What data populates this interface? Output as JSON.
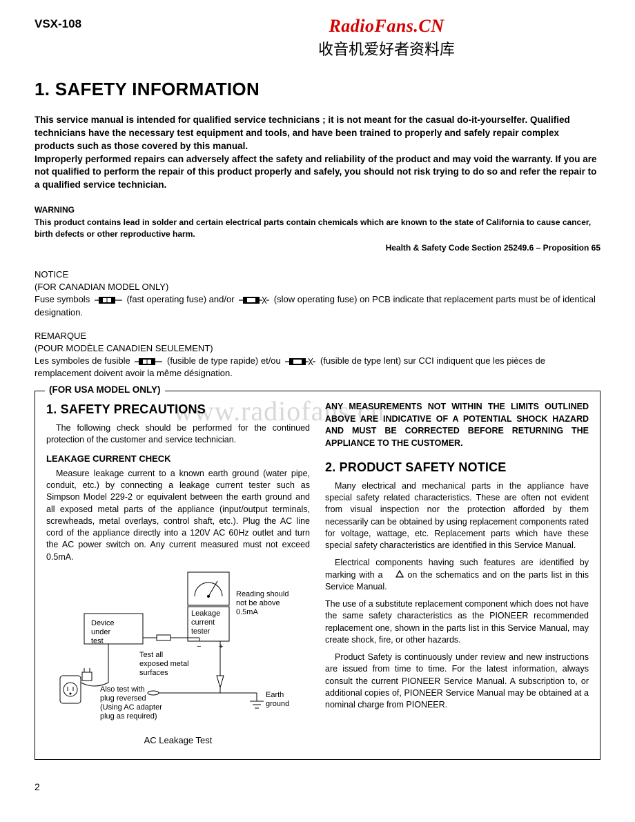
{
  "header": {
    "model": "VSX-108",
    "watermark_en": "RadioFans.CN",
    "watermark_cn": "收音机爱好者资料库"
  },
  "section_title": "1. SAFETY INFORMATION",
  "intro": "This service manual is intended for qualified service technicians ; it is not meant for the casual do-it-yourselfer. Qualified technicians have the necessary test equipment and tools, and have been trained to properly and safely repair complex products such as those covered by this manual.\nImproperly performed repairs can adversely affect the safety and reliability of the product and may void the warranty. If you are not qualified to perform the repair of this product properly and safely, you should not risk trying to do so and refer the repair to a qualified service technician.",
  "warning": {
    "head": "WARNING",
    "body": "This product contains lead in solder and certain electrical parts contain chemicals which are known to the state of California to cause cancer, birth defects or other reproductive harm.",
    "prop65": "Health & Safety Code Section 25249.6 – Proposition 65"
  },
  "notice_en": {
    "line1": "NOTICE",
    "line2": "(FOR CANADIAN MODEL ONLY)",
    "pre": "Fuse symbols",
    "mid": "(fast operating fuse) and/or",
    "post": "(slow operating fuse) on PCB indicate that replacement parts must be of identical designation."
  },
  "notice_fr": {
    "line1": "REMARQUE",
    "line2": "(POUR MODÈLE CANADIEN SEULEMENT)",
    "pre": "Les symboles de fusible",
    "mid": "(fusible de type rapide) et/ou",
    "post": "(fusible de type lent) sur CCI indiquent que les pièces de remplacement doivent avoir la même désignation."
  },
  "box": {
    "legend": "(FOR USA MODEL ONLY)",
    "left": {
      "h": "1. SAFETY PRECAUTIONS",
      "p1": "The following check should be performed for the continued protection of the customer and service technician.",
      "sub": "LEAKAGE CURRENT CHECK",
      "p2": "Measure leakage current to a known earth ground (water pipe, conduit, etc.) by connecting a leakage current tester such as Simpson Model 229-2 or equivalent between the earth ground and all exposed metal parts of the appliance (input/output terminals, screwheads, metal overlays, control shaft, etc.). Plug the AC line cord of the appliance directly into a 120V AC 60Hz outlet and turn the AC power switch on. Any current measured must not exceed 0.5mA."
    },
    "right": {
      "caps": "ANY MEASUREMENTS NOT WITHIN THE LIMITS OUTLINED ABOVE ARE INDICATIVE OF A POTENTIAL SHOCK HAZARD AND MUST BE CORRECTED BEFORE RETURNING THE APPLIANCE TO THE CUSTOMER.",
      "h": "2. PRODUCT SAFETY NOTICE",
      "p1": "Many electrical and mechanical parts in the appliance have special safety related characteristics. These are often not evident from visual inspection nor the protection afforded by them necessarily can be obtained by using replacement components rated for voltage, wattage, etc. Replacement parts which have these special safety characteristics are identified in this Service Manual.",
      "p2_pre": "Electrical components having such features are identified by marking with a ",
      "p2_post": " on the schematics and on the parts list in this Service Manual.",
      "p3": "The use of a substitute replacement component which does not have the same safety characteristics as the PIONEER recommended replacement one, shown in the parts list in this Service Manual, may create shock, fire,  or other hazards.",
      "p4": "Product Safety is continuously under review and new instructions are issued from time to time. For the latest information, always consult the current PIONEER Service Manual. A subscription to, or additional copies of, PIONEER Service Manual may be obtained at a nominal charge from PIONEER."
    },
    "diagram": {
      "device": "Device under test",
      "tester": "Leakage current tester",
      "reading": "Reading should not be above 0.5mA",
      "test_all": "Test all exposed metal surfaces",
      "plug_rev": "Also test with plug reversed (Using AC adapter plug as required)",
      "earth": "Earth ground",
      "caption": "AC Leakage Test"
    }
  },
  "watermark_faint": "www.radiofans.cn",
  "page_number": "2",
  "colors": {
    "brand_red": "#d40000",
    "text": "#000000",
    "bg": "#ffffff",
    "faint_wm": "#d8d8d8"
  }
}
